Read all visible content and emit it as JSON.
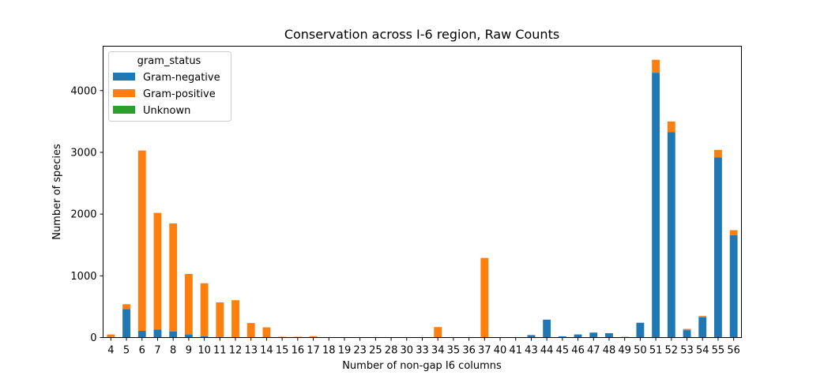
{
  "chart_data": {
    "type": "bar",
    "stacked": true,
    "title": "Conservation across I-6 region, Raw Counts",
    "xlabel": "Number of non-gap I6 columns",
    "ylabel": "Number of species",
    "ylim": [
      0,
      4720
    ],
    "yticks": [
      0,
      1000,
      2000,
      3000,
      4000
    ],
    "grid": false,
    "legend": {
      "title": "gram_status",
      "position": "top-left",
      "entries": [
        "Gram-negative",
        "Gram-positive",
        "Unknown"
      ]
    },
    "categories": [
      "4",
      "5",
      "6",
      "7",
      "8",
      "9",
      "10",
      "11",
      "12",
      "13",
      "14",
      "15",
      "16",
      "17",
      "18",
      "19",
      "23",
      "25",
      "28",
      "30",
      "33",
      "34",
      "35",
      "36",
      "37",
      "40",
      "41",
      "43",
      "44",
      "45",
      "46",
      "47",
      "48",
      "49",
      "50",
      "51",
      "52",
      "53",
      "54",
      "55",
      "56"
    ],
    "series": [
      {
        "name": "Gram-negative",
        "color": "#1f77b4",
        "values": [
          10,
          460,
          110,
          130,
          100,
          50,
          20,
          10,
          5,
          5,
          5,
          2,
          2,
          2,
          0,
          0,
          0,
          0,
          0,
          0,
          0,
          0,
          0,
          0,
          0,
          0,
          0,
          40,
          290,
          20,
          50,
          80,
          70,
          10,
          240,
          4290,
          3330,
          120,
          330,
          2920,
          1660
        ]
      },
      {
        "name": "Gram-positive",
        "color": "#ff7f0e",
        "values": [
          40,
          80,
          2920,
          1890,
          1750,
          980,
          860,
          560,
          600,
          230,
          160,
          10,
          10,
          20,
          0,
          0,
          0,
          5,
          0,
          0,
          5,
          170,
          5,
          0,
          1290,
          0,
          0,
          0,
          0,
          0,
          0,
          0,
          0,
          0,
          0,
          210,
          170,
          20,
          20,
          120,
          80
        ]
      },
      {
        "name": "Unknown",
        "color": "#2ca02c",
        "values": [
          0,
          0,
          0,
          0,
          0,
          0,
          0,
          0,
          0,
          0,
          0,
          0,
          0,
          0,
          0,
          0,
          0,
          0,
          0,
          0,
          0,
          0,
          0,
          0,
          0,
          0,
          0,
          0,
          0,
          0,
          0,
          0,
          0,
          0,
          0,
          0,
          0,
          0,
          0,
          0,
          0
        ]
      }
    ]
  }
}
